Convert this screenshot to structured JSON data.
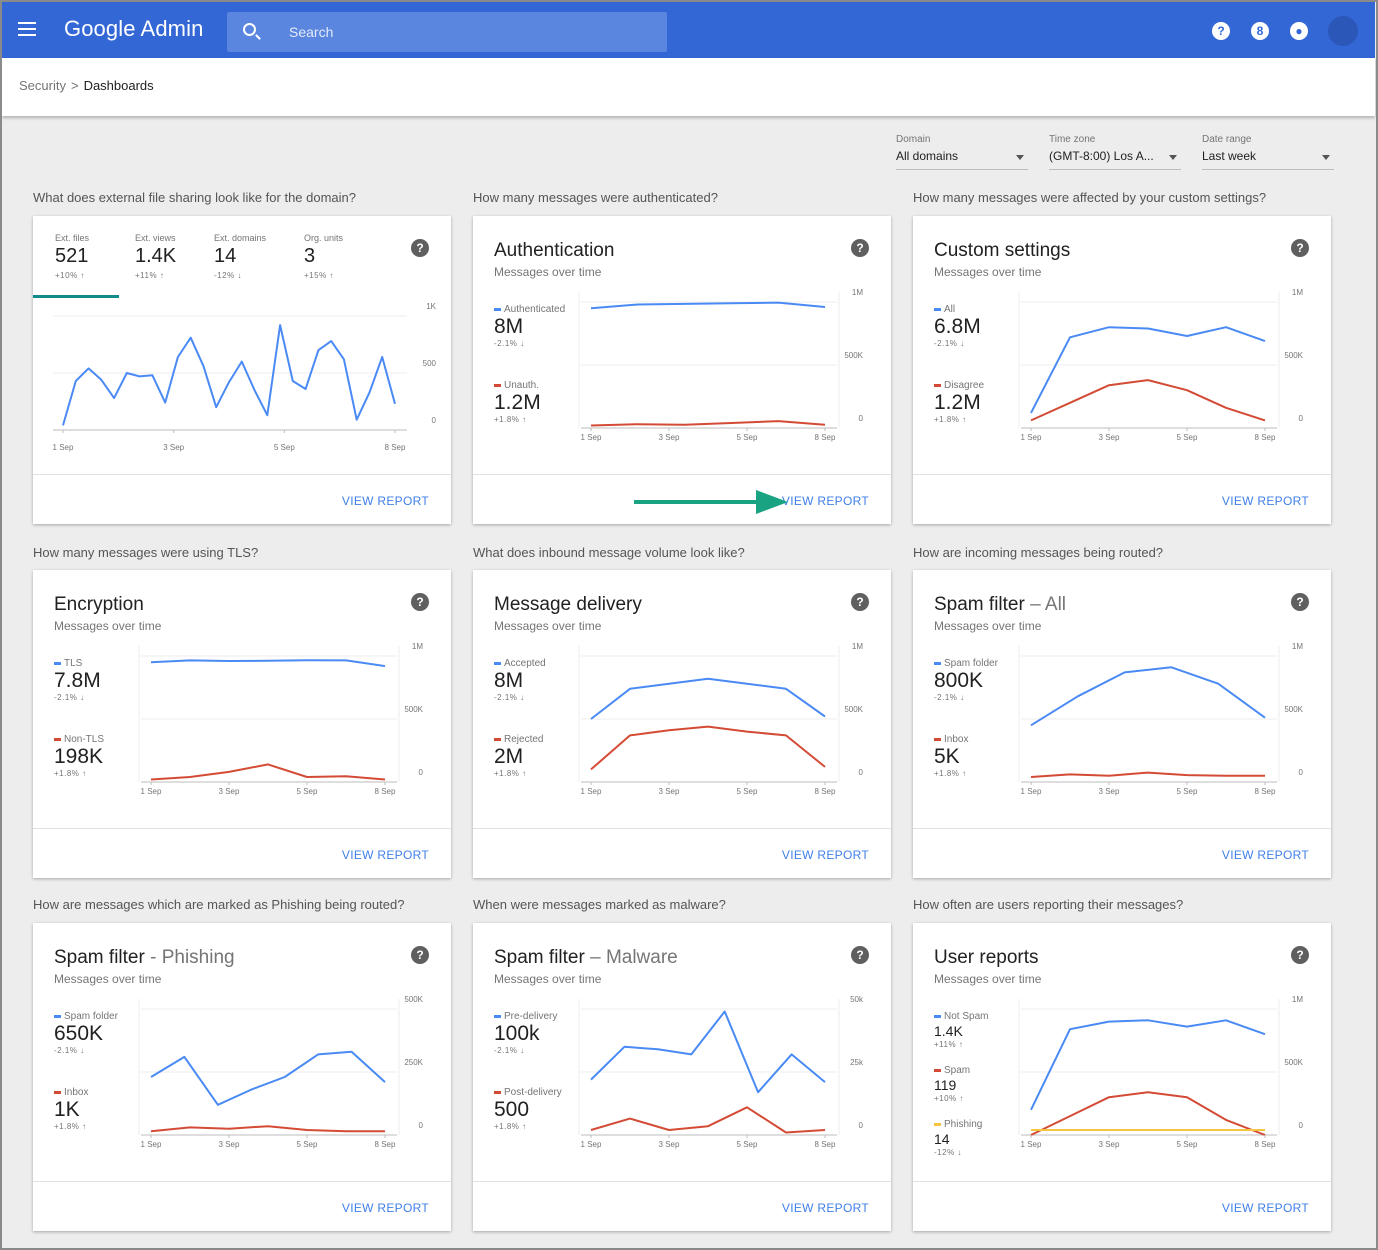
{
  "app": {
    "title": "Google Admin",
    "search_placeholder": "Search"
  },
  "breadcrumb": {
    "parent": "Security",
    "separator": ">",
    "current": "Dashboards"
  },
  "filters": [
    {
      "label": "Domain",
      "value": "All domains"
    },
    {
      "label": "Time zone",
      "value": "(GMT-8:00) Los A..."
    },
    {
      "label": "Date range",
      "value": "Last week"
    }
  ],
  "view_report_label": "VIEW REPORT",
  "x_ticks": [
    "1 Sep",
    "3 Sep",
    "5 Sep",
    "8 Sep"
  ],
  "colors": {
    "blue": "#4a8af4",
    "red": "#d44b35",
    "yellow": "#f5c542"
  },
  "cards": [
    {
      "question": "What does external file sharing look like for the domain?",
      "tabs": [
        {
          "label": "Ext. files",
          "value": "521",
          "change": "+10% ↑"
        },
        {
          "label": "Ext. views",
          "value": "1.4K",
          "change": "+11% ↑"
        },
        {
          "label": "Ext. domains",
          "value": "14",
          "change": "-12% ↓"
        },
        {
          "label": "Org. units",
          "value": "3",
          "change": "+15% ↑"
        }
      ],
      "y_ticks": [
        "1K",
        "500",
        "0"
      ],
      "chart_data": {
        "type": "line",
        "ylim": [
          0,
          1000
        ],
        "series": [
          {
            "color": "blue",
            "values": [
              40,
              430,
              540,
              440,
              280,
              500,
              470,
              480,
              240,
              640,
              810,
              560,
              200,
              420,
              600,
              350,
              130,
              920,
              430,
              360,
              700,
              780,
              620,
              90,
              330,
              640,
              230
            ]
          }
        ]
      }
    },
    {
      "question": "How many messages were authenticated?",
      "title": "Authentication",
      "title_sub": "",
      "subtitle": "Messages over time",
      "y_ticks": [
        "1M",
        "500K",
        "0"
      ],
      "metrics": [
        {
          "label": "Authenticated",
          "value": "8M",
          "change": "-2.1% ↓",
          "color": "blue"
        },
        {
          "label": "Unauth.",
          "value": "1.2M",
          "change": "+1.8% ↑",
          "color": "red"
        }
      ],
      "chart_data": {
        "type": "line",
        "ylim": [
          0,
          1000000
        ],
        "series": [
          {
            "name": "Authenticated",
            "color": "blue",
            "values": [
              950000,
              980000,
              985000,
              990000,
              995000,
              960000
            ]
          },
          {
            "name": "Unauth.",
            "color": "red",
            "values": [
              20000,
              30000,
              25000,
              40000,
              55000,
              25000
            ]
          }
        ]
      }
    },
    {
      "question": "How many messages were affected by your custom settings?",
      "title": "Custom settings",
      "title_sub": "",
      "subtitle": "Messages over time",
      "y_ticks": [
        "1M",
        "500K",
        "0"
      ],
      "metrics": [
        {
          "label": "All",
          "value": "6.8M",
          "change": "-2.1% ↓",
          "color": "blue"
        },
        {
          "label": "Disagree",
          "value": "1.2M",
          "change": "+1.8% ↑",
          "color": "red"
        }
      ],
      "chart_data": {
        "type": "line",
        "ylim": [
          0,
          1000000
        ],
        "series": [
          {
            "name": "All",
            "color": "blue",
            "values": [
              120000,
              720000,
              800000,
              790000,
              730000,
              800000,
              690000
            ]
          },
          {
            "name": "Disagree",
            "color": "red",
            "values": [
              60000,
              200000,
              340000,
              380000,
              300000,
              160000,
              60000
            ]
          }
        ]
      }
    },
    {
      "question": "How many messages were using TLS?",
      "title": "Encryption",
      "title_sub": "",
      "subtitle": "Messages over time",
      "y_ticks": [
        "1M",
        "500K",
        "0"
      ],
      "metrics": [
        {
          "label": "TLS",
          "value": "7.8M",
          "change": "-2.1% ↓",
          "color": "blue"
        },
        {
          "label": "Non-TLS",
          "value": "198K",
          "change": "+1.8% ↑",
          "color": "red"
        }
      ],
      "chart_data": {
        "type": "line",
        "ylim": [
          0,
          1000000
        ],
        "series": [
          {
            "name": "TLS",
            "color": "blue",
            "values": [
              950000,
              965000,
              960000,
              962000,
              966000,
              965000,
              920000
            ]
          },
          {
            "name": "Non-TLS",
            "color": "red",
            "values": [
              20000,
              40000,
              80000,
              140000,
              40000,
              45000,
              20000
            ]
          }
        ]
      }
    },
    {
      "question": "What does inbound message volume look like?",
      "title": "Message delivery",
      "title_sub": "",
      "subtitle": "Messages over time",
      "y_ticks": [
        "1M",
        "500K",
        "0"
      ],
      "metrics": [
        {
          "label": "Accepted",
          "value": "8M",
          "change": "-2.1% ↓",
          "color": "blue"
        },
        {
          "label": "Rejected",
          "value": "2M",
          "change": "+1.8% ↑",
          "color": "red"
        }
      ],
      "chart_data": {
        "type": "line",
        "ylim": [
          0,
          1000000
        ],
        "series": [
          {
            "name": "Accepted",
            "color": "blue",
            "values": [
              500000,
              740000,
              780000,
              820000,
              780000,
              740000,
              520000
            ]
          },
          {
            "name": "Rejected",
            "color": "red",
            "values": [
              100000,
              370000,
              410000,
              440000,
              400000,
              370000,
              120000
            ]
          }
        ]
      }
    },
    {
      "question": "How are incoming messages being routed?",
      "title": "Spam filter",
      "title_sub": "– All",
      "subtitle": "Messages over time",
      "y_ticks": [
        "1M",
        "500K",
        "0"
      ],
      "metrics": [
        {
          "label": "Spam folder",
          "value": "800K",
          "change": "-2.1% ↓",
          "color": "blue"
        },
        {
          "label": "Inbox",
          "value": "5K",
          "change": "+1.8% ↑",
          "color": "red"
        }
      ],
      "chart_data": {
        "type": "line",
        "ylim": [
          0,
          1000000
        ],
        "series": [
          {
            "name": "Spam folder",
            "color": "blue",
            "values": [
              450000,
              680000,
              870000,
              910000,
              780000,
              510000
            ]
          },
          {
            "name": "Inbox",
            "color": "red",
            "values": [
              40000,
              60000,
              50000,
              75000,
              55000,
              50000,
              50000
            ]
          }
        ]
      }
    },
    {
      "question": "How are messages which are marked as Phishing being routed?",
      "title": "Spam filter",
      "title_sub": "- Phishing",
      "subtitle": "Messages over time",
      "y_ticks": [
        "500K",
        "250K",
        "0"
      ],
      "metrics": [
        {
          "label": "Spam folder",
          "value": "650K",
          "change": "-2.1% ↓",
          "color": "blue"
        },
        {
          "label": "Inbox",
          "value": "1K",
          "change": "+1.8% ↑",
          "color": "red"
        }
      ],
      "chart_data": {
        "type": "line",
        "ylim": [
          0,
          500000
        ],
        "series": [
          {
            "name": "Spam folder",
            "color": "blue",
            "values": [
              230000,
              310000,
              120000,
              180000,
              230000,
              320000,
              330000,
              210000
            ]
          },
          {
            "name": "Inbox",
            "color": "red",
            "values": [
              15000,
              30000,
              25000,
              35000,
              20000,
              15000,
              15000
            ]
          }
        ]
      }
    },
    {
      "question": "When were messages marked as malware?",
      "title": "Spam filter",
      "title_sub": "– Malware",
      "subtitle": "Messages over time",
      "y_ticks": [
        "50k",
        "25k",
        "0"
      ],
      "metrics": [
        {
          "label": "Pre-delivery",
          "value": "100k",
          "change": "-2.1% ↓",
          "color": "blue"
        },
        {
          "label": "Post-delivery",
          "value": "500",
          "change": "+1.8% ↑",
          "color": "red"
        }
      ],
      "chart_data": {
        "type": "line",
        "ylim": [
          0,
          50000
        ],
        "series": [
          {
            "name": "Pre-delivery",
            "color": "blue",
            "values": [
              22000,
              35000,
              34000,
              32000,
              49000,
              17000,
              32000,
              21000
            ]
          },
          {
            "name": "Post-delivery",
            "color": "red",
            "values": [
              2000,
              6500,
              2000,
              3500,
              11000,
              1000,
              2000
            ]
          }
        ]
      }
    },
    {
      "question": "How often are users reporting their messages?",
      "title": "User reports",
      "title_sub": "",
      "subtitle": "Messages over time",
      "y_ticks": [
        "1M",
        "500K",
        "0"
      ],
      "metrics": [
        {
          "label": "Not Spam",
          "value": "1.4K",
          "change": "+11% ↑",
          "color": "blue"
        },
        {
          "label": "Spam",
          "value": "119",
          "change": "+10% ↑",
          "color": "red"
        },
        {
          "label": "Phishing",
          "value": "14",
          "change": "-12% ↓",
          "color": "yellow"
        }
      ],
      "chart_data": {
        "type": "line",
        "ylim": [
          0,
          1000000
        ],
        "series": [
          {
            "name": "Not Spam",
            "color": "blue",
            "values": [
              200000,
              840000,
              900000,
              910000,
              860000,
              910000,
              800000
            ]
          },
          {
            "name": "Spam",
            "color": "red",
            "values": [
              0,
              150000,
              300000,
              340000,
              300000,
              120000,
              0
            ]
          },
          {
            "name": "Phishing",
            "color": "yellow",
            "values": [
              40000,
              40000,
              40000,
              40000,
              40000,
              40000
            ]
          }
        ]
      }
    }
  ]
}
